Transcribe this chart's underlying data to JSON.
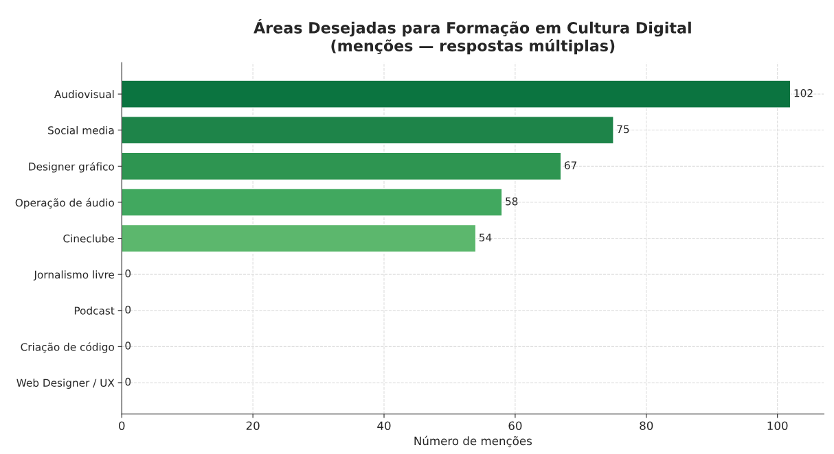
{
  "chart_data": {
    "type": "bar",
    "orientation": "horizontal",
    "title": "Áreas Desejadas para Formação em Cultura Digital\n(menções — respostas múltiplas)",
    "xlabel": "Número de menções",
    "categories": [
      "Audiovisual",
      "Social media",
      "Designer gráfico",
      "Operação de áudio",
      "Cineclube",
      "Jornalismo livre",
      "Podcast",
      "Criação de código",
      "Web Designer / UX"
    ],
    "values": [
      102,
      75,
      67,
      58,
      54,
      0,
      0,
      0,
      0
    ],
    "colors": [
      "#0b7440",
      "#1e8449",
      "#2e9551",
      "#41a85f",
      "#5cb76d",
      null,
      null,
      null,
      null
    ],
    "xlim": [
      0,
      107.1
    ],
    "xticks": [
      0,
      20,
      40,
      60,
      80,
      100
    ],
    "grid": true,
    "line_style": "dashed",
    "data_labels": true
  }
}
